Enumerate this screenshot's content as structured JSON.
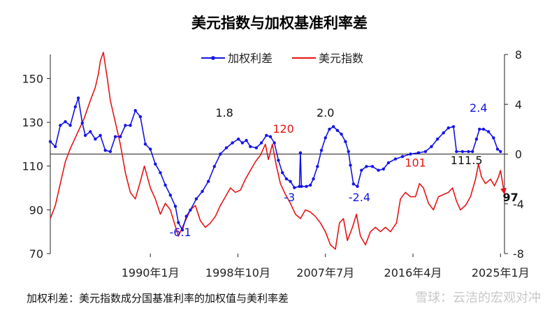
{
  "chart_data": {
    "type": "line",
    "title": "美元指数与加权基准利率差",
    "footnote": "加权利差：美元指数成分国基准利率的加权值与美利率差",
    "watermark": "雪球：云洁的宏观对冲",
    "x_tick_labels": [
      "1990年1月",
      "1998年10月",
      "2007年7月",
      "2016年4月",
      "2025年1月"
    ],
    "x_tick_dates": [
      1990.0,
      1998.75,
      2007.5,
      2016.25,
      2025.0
    ],
    "xlim": [
      1980.0,
      2025.4
    ],
    "left_axis": {
      "ticks": [
        "70",
        "90",
        "110",
        "130",
        "150"
      ],
      "ylim": [
        70,
        161
      ]
    },
    "right_axis": {
      "ticks": [
        "-8",
        "-4",
        "0",
        "4",
        "8"
      ],
      "ylim": [
        -8,
        8
      ]
    },
    "grid": false,
    "legend_position": "top",
    "series": [
      {
        "name": "加权利差",
        "axis": "right",
        "color": "#1414e6",
        "marker": "dot",
        "points": [
          [
            1980.0,
            1.0
          ],
          [
            1980.5,
            0.6
          ],
          [
            1981.0,
            2.3
          ],
          [
            1981.5,
            2.6
          ],
          [
            1982.0,
            2.3
          ],
          [
            1982.5,
            3.8
          ],
          [
            1982.8,
            4.5
          ],
          [
            1983.2,
            2.5
          ],
          [
            1983.5,
            1.5
          ],
          [
            1984.0,
            1.8
          ],
          [
            1984.5,
            1.2
          ],
          [
            1985.0,
            1.5
          ],
          [
            1985.5,
            0.3
          ],
          [
            1986.0,
            0.2
          ],
          [
            1986.5,
            1.4
          ],
          [
            1987.0,
            1.4
          ],
          [
            1987.5,
            2.3
          ],
          [
            1988.0,
            2.3
          ],
          [
            1988.5,
            3.5
          ],
          [
            1989.0,
            3.0
          ],
          [
            1989.5,
            0.8
          ],
          [
            1990.0,
            0.4
          ],
          [
            1990.5,
            -0.8
          ],
          [
            1991.0,
            -1.5
          ],
          [
            1991.5,
            -2.5
          ],
          [
            1992.0,
            -3.3
          ],
          [
            1992.5,
            -4.2
          ],
          [
            1992.8,
            -5.5
          ],
          [
            1993.2,
            -6.1
          ],
          [
            1993.6,
            -5.0
          ],
          [
            1994.0,
            -4.5
          ],
          [
            1994.6,
            -3.6
          ],
          [
            1995.2,
            -3.0
          ],
          [
            1995.8,
            -2.2
          ],
          [
            1996.4,
            -1.0
          ],
          [
            1997.0,
            0.0
          ],
          [
            1997.6,
            0.5
          ],
          [
            1998.2,
            0.9
          ],
          [
            1998.8,
            1.2
          ],
          [
            1999.2,
            0.9
          ],
          [
            1999.6,
            1.1
          ],
          [
            2000.0,
            0.6
          ],
          [
            2000.6,
            0.5
          ],
          [
            2001.1,
            0.9
          ],
          [
            2001.6,
            1.5
          ],
          [
            2002.0,
            1.4
          ],
          [
            2002.4,
            0.9
          ],
          [
            2002.8,
            -0.5
          ],
          [
            2003.2,
            -1.5
          ],
          [
            2003.6,
            -2.0
          ],
          [
            2004.0,
            -2.2
          ],
          [
            2004.4,
            -2.7
          ],
          [
            2004.9,
            -2.6
          ],
          [
            2005.0,
            0.1
          ],
          [
            2005.1,
            -2.6
          ],
          [
            2005.6,
            -2.6
          ],
          [
            2006.0,
            -2.5
          ],
          [
            2006.3,
            -2.0
          ],
          [
            2006.7,
            -1.0
          ],
          [
            2007.1,
            0.3
          ],
          [
            2007.5,
            1.3
          ],
          [
            2007.9,
            2.0
          ],
          [
            2008.3,
            2.2
          ],
          [
            2008.7,
            1.9
          ],
          [
            2009.1,
            1.6
          ],
          [
            2009.5,
            1.0
          ],
          [
            2009.8,
            0.2
          ],
          [
            2010.0,
            -0.9
          ],
          [
            2010.3,
            -2.4
          ],
          [
            2010.7,
            -2.6
          ],
          [
            2011.1,
            -1.3
          ],
          [
            2011.6,
            -1.0
          ],
          [
            2012.2,
            -1.0
          ],
          [
            2012.8,
            -1.3
          ],
          [
            2013.3,
            -1.2
          ],
          [
            2013.8,
            -0.7
          ],
          [
            2014.5,
            -0.4
          ],
          [
            2015.2,
            -0.2
          ],
          [
            2016.0,
            0.0
          ],
          [
            2016.8,
            0.1
          ],
          [
            2017.5,
            0.2
          ],
          [
            2018.1,
            0.6
          ],
          [
            2018.7,
            1.2
          ],
          [
            2019.3,
            1.7
          ],
          [
            2019.8,
            2.1
          ],
          [
            2020.3,
            2.2
          ],
          [
            2020.6,
            0.2
          ],
          [
            2021.2,
            0.2
          ],
          [
            2021.8,
            0.2
          ],
          [
            2022.2,
            0.2
          ],
          [
            2022.6,
            1.2
          ],
          [
            2022.9,
            2.0
          ],
          [
            2023.3,
            2.0
          ],
          [
            2023.8,
            1.8
          ],
          [
            2024.3,
            1.3
          ],
          [
            2024.7,
            0.4
          ],
          [
            2025.0,
            0.2
          ]
        ]
      },
      {
        "name": "美元指数",
        "axis": "left",
        "color": "#e61414",
        "marker": "none",
        "points": [
          [
            1980.0,
            86
          ],
          [
            1980.5,
            92
          ],
          [
            1981.0,
            102
          ],
          [
            1981.5,
            112
          ],
          [
            1982.0,
            118
          ],
          [
            1982.6,
            124
          ],
          [
            1983.0,
            128
          ],
          [
            1983.4,
            132
          ],
          [
            1983.7,
            136
          ],
          [
            1984.0,
            140
          ],
          [
            1984.5,
            146
          ],
          [
            1984.8,
            152
          ],
          [
            1985.0,
            158
          ],
          [
            1985.3,
            162
          ],
          [
            1985.7,
            150
          ],
          [
            1986.0,
            140
          ],
          [
            1986.5,
            130
          ],
          [
            1987.0,
            120
          ],
          [
            1987.5,
            107
          ],
          [
            1988.0,
            98
          ],
          [
            1988.5,
            95
          ],
          [
            1989.0,
            103
          ],
          [
            1989.4,
            110
          ],
          [
            1990.0,
            100
          ],
          [
            1990.5,
            95
          ],
          [
            1991.0,
            88
          ],
          [
            1991.5,
            93
          ],
          [
            1992.0,
            90
          ],
          [
            1992.4,
            84
          ],
          [
            1992.8,
            78
          ],
          [
            1993.2,
            82
          ],
          [
            1993.6,
            86
          ],
          [
            1994.0,
            90
          ],
          [
            1994.5,
            92
          ],
          [
            1995.0,
            85
          ],
          [
            1995.5,
            82
          ],
          [
            1996.0,
            84
          ],
          [
            1996.5,
            87
          ],
          [
            1997.0,
            92
          ],
          [
            1997.5,
            96
          ],
          [
            1998.0,
            100
          ],
          [
            1998.5,
            98
          ],
          [
            1999.0,
            99
          ],
          [
            1999.5,
            104
          ],
          [
            2000.0,
            108
          ],
          [
            2000.5,
            112
          ],
          [
            2001.0,
            115
          ],
          [
            2001.5,
            120
          ],
          [
            2001.8,
            113
          ],
          [
            2002.2,
            120
          ],
          [
            2002.6,
            110
          ],
          [
            2003.0,
            102
          ],
          [
            2003.5,
            97
          ],
          [
            2004.0,
            93
          ],
          [
            2004.5,
            88
          ],
          [
            2005.0,
            86
          ],
          [
            2005.5,
            90
          ],
          [
            2006.0,
            89
          ],
          [
            2006.5,
            87
          ],
          [
            2007.0,
            84
          ],
          [
            2007.5,
            80
          ],
          [
            2008.0,
            74
          ],
          [
            2008.5,
            72
          ],
          [
            2008.9,
            84
          ],
          [
            2009.3,
            86
          ],
          [
            2009.7,
            76
          ],
          [
            2010.2,
            82
          ],
          [
            2010.6,
            88
          ],
          [
            2011.0,
            78
          ],
          [
            2011.5,
            74
          ],
          [
            2012.0,
            80
          ],
          [
            2012.5,
            82
          ],
          [
            2013.0,
            80
          ],
          [
            2013.5,
            82
          ],
          [
            2014.0,
            80
          ],
          [
            2014.6,
            84
          ],
          [
            2015.0,
            95
          ],
          [
            2015.5,
            98
          ],
          [
            2016.0,
            96
          ],
          [
            2016.5,
            96
          ],
          [
            2016.9,
            102
          ],
          [
            2017.3,
            100
          ],
          [
            2017.8,
            93
          ],
          [
            2018.3,
            90
          ],
          [
            2018.8,
            96
          ],
          [
            2019.3,
            97
          ],
          [
            2019.8,
            98
          ],
          [
            2020.2,
            100
          ],
          [
            2020.6,
            94
          ],
          [
            2021.0,
            90
          ],
          [
            2021.5,
            92
          ],
          [
            2022.0,
            96
          ],
          [
            2022.5,
            104
          ],
          [
            2022.8,
            111
          ],
          [
            2023.1,
            105
          ],
          [
            2023.5,
            102
          ],
          [
            2024.0,
            104
          ],
          [
            2024.4,
            101
          ],
          [
            2024.8,
            105
          ],
          [
            2025.0,
            108
          ],
          [
            2025.4,
            97
          ]
        ]
      }
    ],
    "annotations": [
      {
        "text": "1.8",
        "x": 1997.4,
        "y": 3.0,
        "axis": "right",
        "color": "#111111",
        "bold": false
      },
      {
        "text": "2.0",
        "x": 2007.5,
        "y": 3.0,
        "axis": "right",
        "color": "#111111",
        "bold": false
      },
      {
        "text": "2.4",
        "x": 2022.8,
        "y": 3.4,
        "axis": "right",
        "color": "#1414e6",
        "bold": false
      },
      {
        "text": "120",
        "x": 2003.3,
        "y": 1.7,
        "axis": "right",
        "color": "#e61414",
        "bold": false
      },
      {
        "text": "101",
        "x": 2016.5,
        "y": -1.0,
        "axis": "right",
        "color": "#e61414",
        "bold": false
      },
      {
        "text": "111.5",
        "x": 2021.6,
        "y": -0.8,
        "axis": "right",
        "color": "#111111",
        "bold": false
      },
      {
        "text": "-3",
        "x": 2003.9,
        "y": -3.8,
        "axis": "right",
        "color": "#1414e6",
        "bold": false
      },
      {
        "text": "-2.4",
        "x": 2010.9,
        "y": -3.8,
        "axis": "right",
        "color": "#1414e6",
        "bold": false
      },
      {
        "text": "-6.1",
        "x": 1993.0,
        "y": -6.6,
        "axis": "right",
        "color": "#1414e6",
        "bold": false
      },
      {
        "text": "97",
        "x": 2026.0,
        "y": -3.8,
        "axis": "right",
        "color": "#111111",
        "bold": true
      }
    ]
  }
}
